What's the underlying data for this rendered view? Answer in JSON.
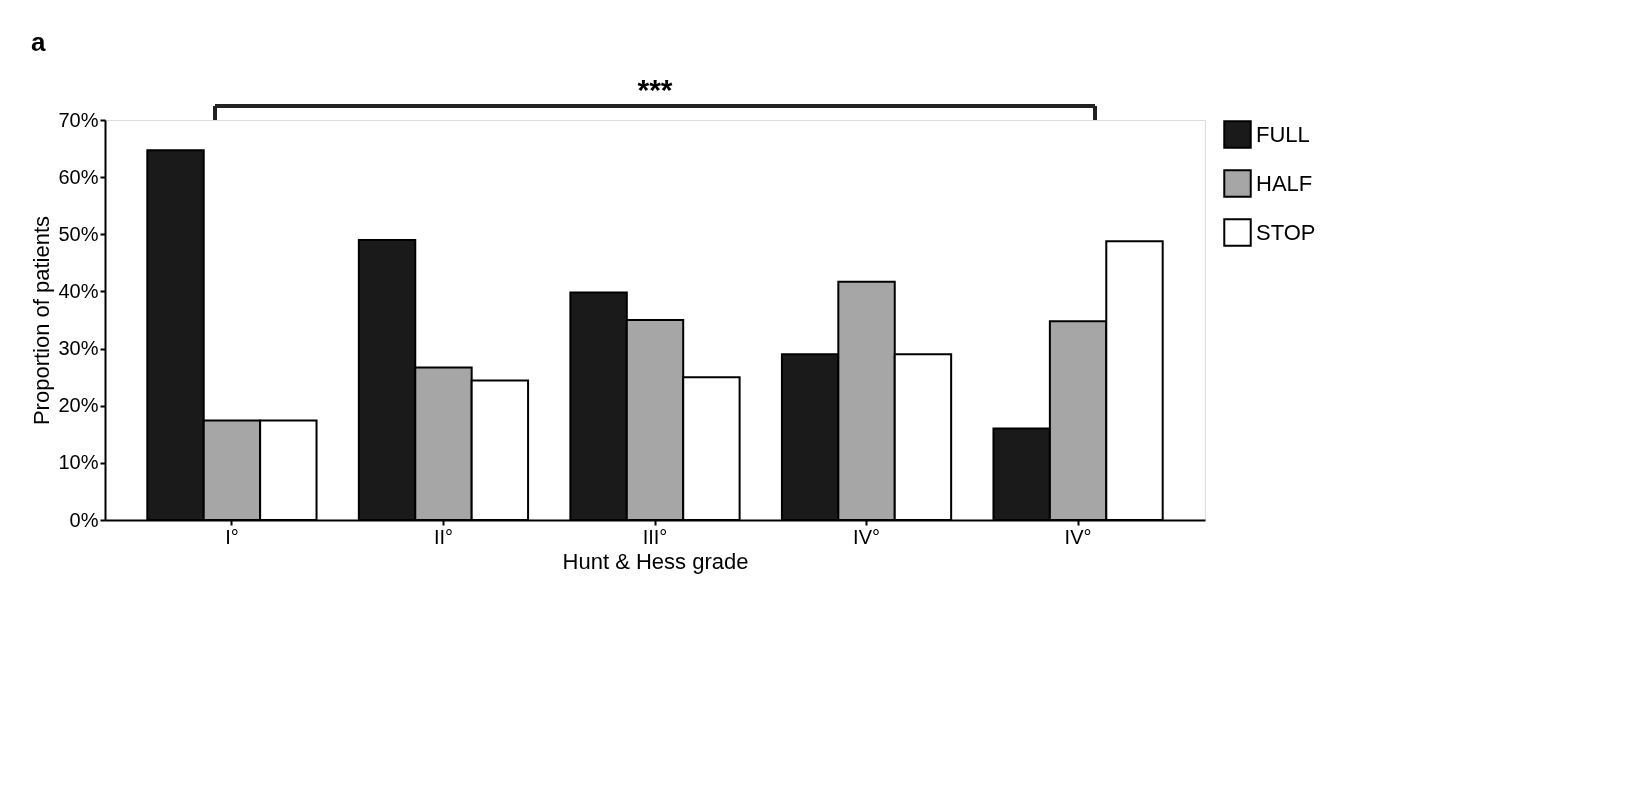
{
  "chart_data": {
    "type": "bar",
    "xlabel": "Hunt & Hess grade",
    "ylabel": "Proportion of patients",
    "categories": [
      "I°",
      "II°",
      "III°",
      "IV°",
      "IV°"
    ],
    "series": [
      {
        "name": "FULL",
        "color": "#1a1a1a",
        "values": [
          64.7,
          49,
          39.8,
          29,
          16
        ]
      },
      {
        "name": "HALF",
        "color": "#a6a6a6",
        "values": [
          17.4,
          26.7,
          35,
          41.7,
          34.8
        ]
      },
      {
        "name": "STOP",
        "color": "#ffffff",
        "values": [
          17.4,
          24.4,
          25,
          29,
          48.8
        ]
      }
    ],
    "ylim": [
      0,
      70
    ],
    "yticks": [
      {
        "value": 0,
        "label": "0%"
      },
      {
        "value": 10,
        "label": "10%"
      },
      {
        "value": 20,
        "label": "20%"
      },
      {
        "value": 30,
        "label": "30%"
      },
      {
        "value": 40,
        "label": "40%"
      },
      {
        "value": 50,
        "label": "50%"
      },
      {
        "value": 60,
        "label": "60%"
      },
      {
        "value": 70,
        "label": "70%"
      }
    ],
    "annotations": [
      "a",
      "***"
    ],
    "legend": "right",
    "grid": false
  }
}
